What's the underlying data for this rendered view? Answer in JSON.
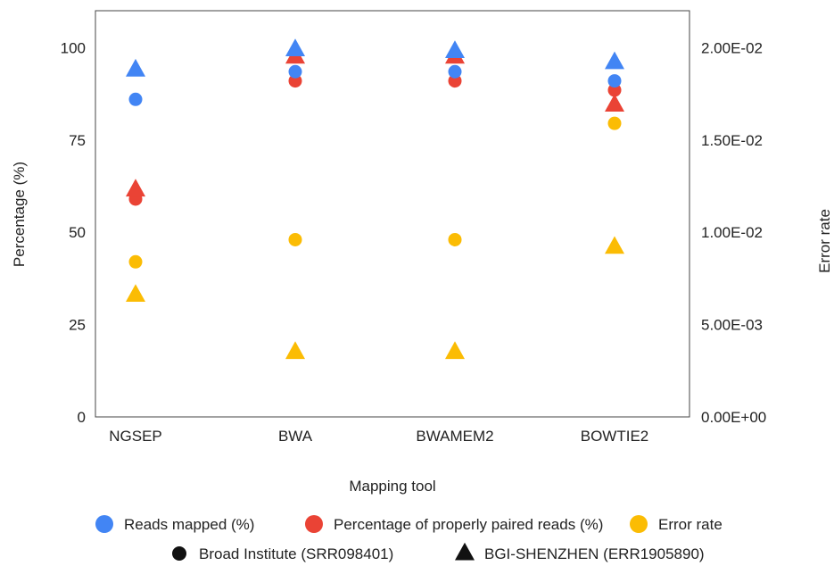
{
  "chart_data": {
    "type": "scatter",
    "categories": [
      "NGSEP",
      "BWA",
      "BWAMEM2",
      "BOWTIE2"
    ],
    "xlabel": "Mapping tool",
    "ylabel": "Percentage (%)",
    "y2label": "Error rate",
    "ylim": [
      0,
      110
    ],
    "y2lim": [
      0,
      0.022
    ],
    "yticks": [
      "0",
      "25",
      "50",
      "75",
      "100"
    ],
    "yticks_values": [
      0,
      25,
      50,
      75,
      100
    ],
    "y2ticks": [
      "0.00E+00",
      "5.00E-03",
      "1.00E-02",
      "1.50E-02",
      "2.00E-02"
    ],
    "y2ticks_values": [
      0,
      0.005,
      0.01,
      0.015,
      0.02
    ],
    "grid": false,
    "legend_position": "bottom",
    "series": [
      {
        "name": "Reads mapped (%)",
        "color": "#4285f4",
        "marker": "circle",
        "axis": "left",
        "values": [
          86,
          93.5,
          93.5,
          91
        ]
      },
      {
        "name": "Reads mapped (%)",
        "color": "#4285f4",
        "marker": "triangle",
        "axis": "left",
        "values": [
          94,
          99.5,
          99,
          96
        ]
      },
      {
        "name": "Percentage of properly paired reads (%)",
        "color": "#ea4335",
        "marker": "circle",
        "axis": "left",
        "values": [
          59,
          91,
          91,
          88.5
        ]
      },
      {
        "name": "Percentage of properly paired reads (%)",
        "color": "#ea4335",
        "marker": "triangle",
        "axis": "left",
        "values": [
          61.5,
          97.5,
          97.5,
          84.5
        ]
      },
      {
        "name": "Error rate",
        "color": "#fbbc04",
        "marker": "circle",
        "axis": "right",
        "values": [
          0.0084,
          0.0096,
          0.0096,
          0.0159
        ]
      },
      {
        "name": "Error rate",
        "color": "#fbbc04",
        "marker": "triangle",
        "axis": "right",
        "values": [
          0.0066,
          0.0035,
          0.0035,
          0.0092
        ]
      }
    ],
    "legend_colors": [
      {
        "label": "Reads mapped (%)",
        "color": "#4285f4"
      },
      {
        "label": "Percentage of properly paired reads (%)",
        "color": "#ea4335"
      },
      {
        "label": "Error rate",
        "color": "#fbbc04"
      }
    ],
    "legend_shapes": [
      {
        "label": "Broad Institute (SRR098401)",
        "marker": "circle"
      },
      {
        "label": "BGI-SHENZHEN (ERR1905890)",
        "marker": "triangle"
      }
    ]
  }
}
